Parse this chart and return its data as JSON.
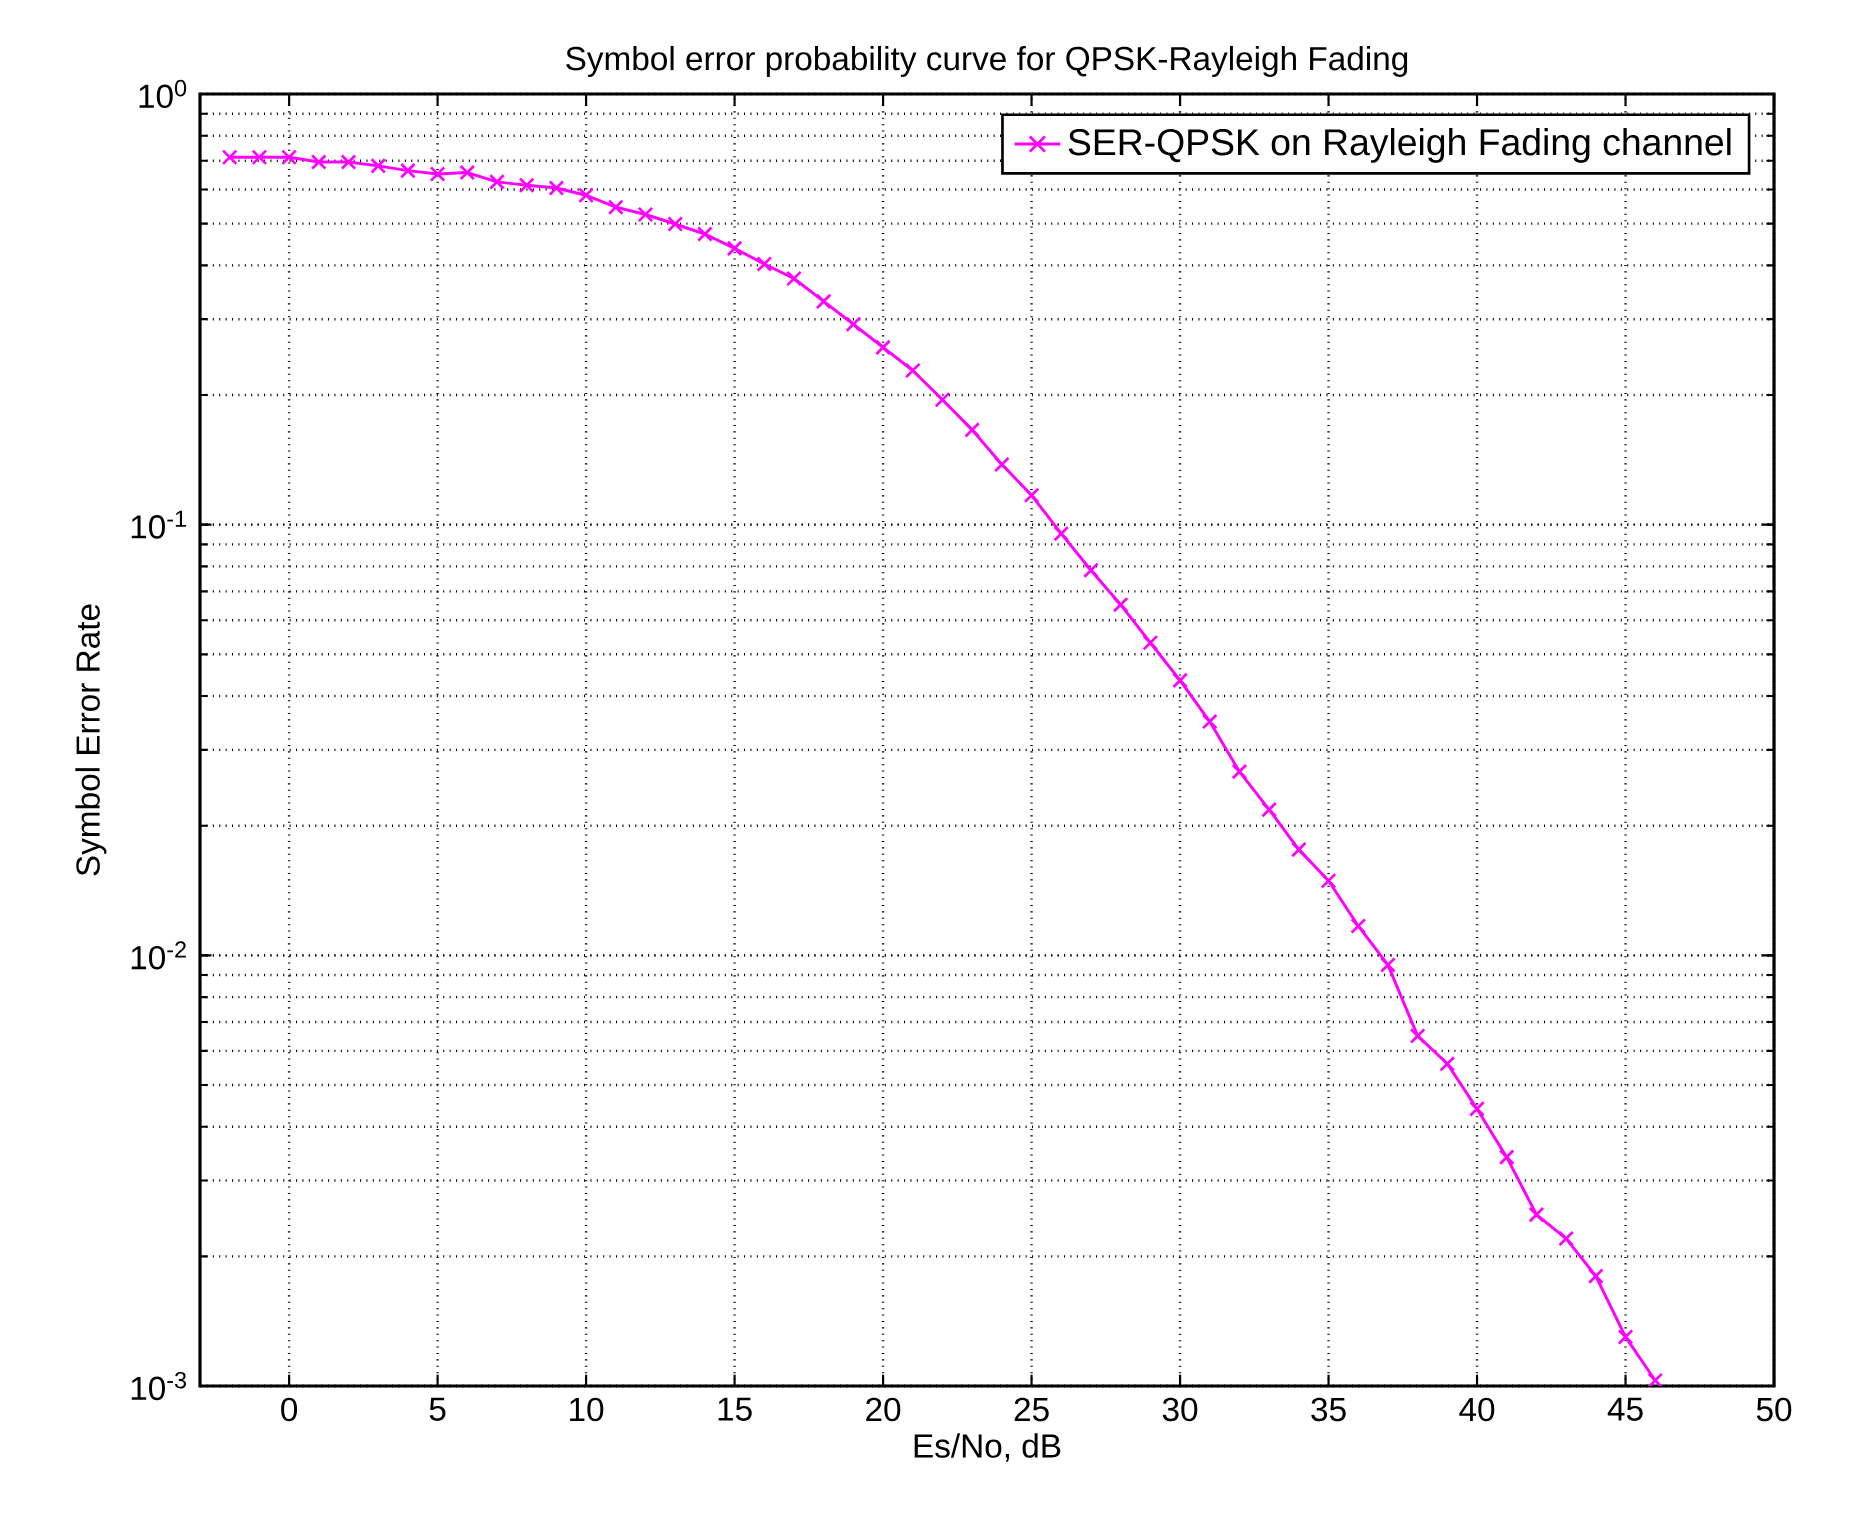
{
  "chart_data": {
    "type": "line",
    "title": "Symbol error probability curve for QPSK-Rayleigh Fading",
    "xlabel": "Es/No, dB",
    "ylabel": "Symbol Error Rate",
    "x": [
      -2,
      -1,
      0,
      1,
      2,
      3,
      4,
      5,
      6,
      7,
      8,
      9,
      10,
      11,
      12,
      13,
      14,
      15,
      16,
      17,
      18,
      19,
      20,
      21,
      22,
      23,
      24,
      25,
      26,
      27,
      28,
      29,
      30,
      31,
      32,
      33,
      34,
      35,
      36,
      37,
      38,
      39,
      40,
      41,
      42,
      43,
      44,
      45,
      46
    ],
    "series": [
      {
        "name": "SER-QPSK on Rayleigh Fading channel",
        "color": "#ff00ff",
        "values": [
          0.713,
          0.713,
          0.713,
          0.695,
          0.695,
          0.681,
          0.664,
          0.652,
          0.657,
          0.625,
          0.614,
          0.605,
          0.582,
          0.546,
          0.525,
          0.499,
          0.473,
          0.438,
          0.403,
          0.373,
          0.33,
          0.292,
          0.258,
          0.228,
          0.195,
          0.166,
          0.138,
          0.117,
          0.0953,
          0.0784,
          0.0652,
          0.0532,
          0.0435,
          0.0349,
          0.0267,
          0.0218,
          0.0176,
          0.0149,
          0.0117,
          0.0095,
          0.0065,
          0.0056,
          0.0044,
          0.0034,
          0.0025,
          0.0022,
          0.0018,
          0.0013,
          0.00103
        ]
      }
    ],
    "xlim": [
      -3,
      50
    ],
    "ylim": [
      0.001,
      1
    ],
    "xticks": [
      0,
      5,
      10,
      15,
      20,
      25,
      30,
      35,
      40,
      45,
      50
    ],
    "yticks": [
      {
        "value": 0.001,
        "label": "10$^{-3}$"
      },
      {
        "value": 0.01,
        "label": "10$^{-2}$"
      },
      {
        "value": 0.1,
        "label": "10$^{-1}$"
      },
      {
        "value": 1,
        "label": "10$^{0}$"
      }
    ],
    "log": "y",
    "grid": true,
    "legend": "top right",
    "marker": "cross",
    "line_style": "solid"
  }
}
